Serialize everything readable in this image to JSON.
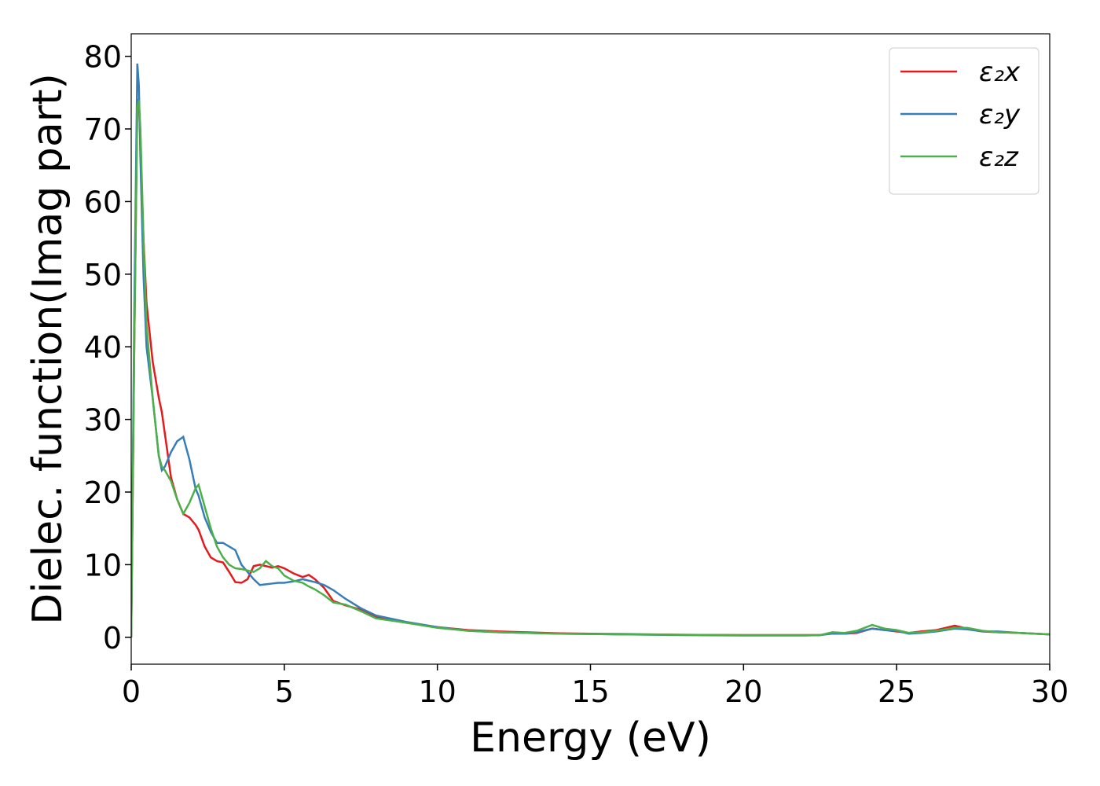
{
  "chart_data": {
    "type": "line",
    "xlabel": "Energy (eV)",
    "ylabel": "Dielec. function(Imag part)",
    "xlim": [
      0,
      30
    ],
    "ylim": [
      -3.7,
      83.1
    ],
    "xticks": [
      0,
      5,
      10,
      15,
      20,
      25,
      30
    ],
    "yticks": [
      0,
      10,
      20,
      30,
      40,
      50,
      60,
      70,
      80
    ],
    "grid": false,
    "legend": "upper right",
    "x": [
      0,
      0.1,
      0.2,
      0.25,
      0.3,
      0.4,
      0.5,
      0.7,
      0.9,
      1.0,
      1.1,
      1.3,
      1.5,
      1.7,
      1.9,
      2.1,
      2.2,
      2.4,
      2.6,
      2.8,
      3.0,
      3.2,
      3.4,
      3.6,
      3.8,
      4.0,
      4.2,
      4.4,
      4.6,
      4.8,
      5.0,
      5.3,
      5.6,
      5.8,
      6.0,
      6.3,
      6.6,
      7.0,
      7.5,
      8,
      9,
      10,
      11,
      12,
      14,
      16,
      18,
      20,
      22,
      22.5,
      22.9,
      23.3,
      23.7,
      24.2,
      24.6,
      25,
      25.4,
      25.8,
      26.3,
      26.9,
      27.3,
      27.8,
      28.3,
      29,
      30
    ],
    "series": [
      {
        "name": "ε₂x",
        "color": "#e41a1c",
        "values": [
          0,
          40,
          74,
          74,
          68,
          55,
          46,
          38,
          33,
          31,
          28,
          22,
          19,
          17,
          16.5,
          15.5,
          14.8,
          12.5,
          11,
          10.5,
          10.3,
          9,
          7.6,
          7.5,
          8,
          9.8,
          10,
          9.8,
          9.6,
          9.8,
          9.5,
          8.8,
          8.3,
          8.6,
          8,
          6.8,
          5,
          4.4,
          3.8,
          2.8,
          2,
          1.4,
          1.0,
          0.8,
          0.55,
          0.45,
          0.35,
          0.3,
          0.3,
          0.3,
          0.6,
          0.5,
          0.6,
          1.2,
          1.0,
          0.8,
          0.6,
          0.8,
          1.0,
          1.6,
          1.2,
          0.8,
          0.7,
          0.6,
          0.4
        ]
      },
      {
        "name": "ε₂y",
        "color": "#377eb8",
        "values": [
          0,
          45,
          79,
          76,
          66,
          50,
          40,
          33,
          25,
          23,
          23.5,
          25.5,
          27,
          27.6,
          24.5,
          20.5,
          19.5,
          16.5,
          14.5,
          13,
          13,
          12.5,
          12,
          10,
          9,
          8,
          7.2,
          7.3,
          7.4,
          7.5,
          7.5,
          7.7,
          8,
          7.8,
          7.6,
          7.2,
          6.5,
          5.3,
          4,
          3,
          2.1,
          1.4,
          0.9,
          0.7,
          0.5,
          0.4,
          0.3,
          0.25,
          0.25,
          0.3,
          0.5,
          0.5,
          0.7,
          1.2,
          1.0,
          0.9,
          0.5,
          0.6,
          0.8,
          1.2,
          1.1,
          0.8,
          0.8,
          0.6,
          0.4
        ]
      },
      {
        "name": "ε₂z",
        "color": "#4daf4a",
        "values": [
          0,
          40,
          73,
          74,
          70,
          55,
          43,
          33,
          25,
          23.5,
          23,
          21.5,
          19,
          17,
          18.5,
          20.5,
          21,
          18,
          15,
          12.5,
          11,
          10,
          9.5,
          9.4,
          9.2,
          9,
          9.5,
          10.5,
          9.8,
          9.5,
          8.5,
          7.8,
          7.5,
          7,
          6.6,
          5.8,
          4.8,
          4.5,
          3.6,
          2.6,
          2,
          1.3,
          0.9,
          0.7,
          0.5,
          0.4,
          0.35,
          0.3,
          0.3,
          0.3,
          0.7,
          0.6,
          0.9,
          1.7,
          1.2,
          1.0,
          0.6,
          0.7,
          0.9,
          1.3,
          1.3,
          0.9,
          0.7,
          0.6,
          0.4
        ]
      }
    ]
  }
}
